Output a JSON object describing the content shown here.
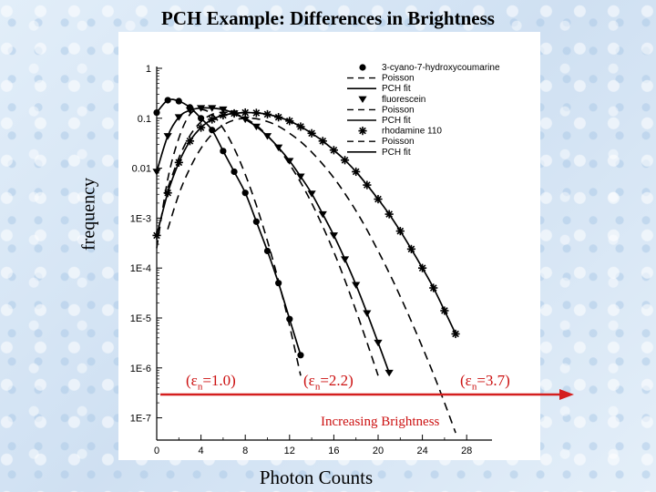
{
  "slide": {
    "title": "PCH Example: Differences in Brightness",
    "ylabel": "frequency",
    "xlabel": "Photon Counts",
    "brightness_label": "Increasing  Brightness",
    "arrow_color": "#d41e1e",
    "epsilon_prefix": "(ε",
    "epsilon_sub": "n",
    "epsilon_labels": [
      "=1.0)",
      "=2.2)",
      "=3.7)"
    ]
  },
  "chart_data": {
    "type": "scatter",
    "title": "PCH Example: Differences in Brightness",
    "xlabel": "Photon Counts",
    "ylabel": "frequency",
    "x_ticks": [
      0,
      4,
      8,
      12,
      16,
      20,
      24,
      28
    ],
    "y_ticks": [
      1,
      0.1,
      0.01,
      0.001,
      0.0001,
      1e-05,
      1e-06,
      1e-07
    ],
    "y_tick_labels": [
      "1",
      "0.1",
      "0.01",
      "1E-3",
      "1E-4",
      "1E-5",
      "1E-6",
      "1E-7"
    ],
    "xlim": [
      0,
      30
    ],
    "ylim": [
      6e-08,
      2
    ],
    "yscale": "log",
    "legend": [
      "3-cyano-7-hydroxycoumarine",
      "Poisson",
      "PCH fit",
      "fluorescein",
      "Poisson",
      "PCH fit",
      "rhodamine 110",
      "Poisson",
      "PCH fit"
    ],
    "series": [
      {
        "name": "3-cyano-7-hydroxycoumarine",
        "marker": "circle",
        "x": [
          0,
          1,
          2,
          3,
          4,
          5,
          6,
          7,
          8,
          9,
          10,
          11,
          12,
          13
        ],
        "y": [
          0.13,
          0.23,
          0.22,
          0.165,
          0.1,
          0.058,
          0.022,
          0.0085,
          0.0032,
          0.00085,
          0.00022,
          5e-05,
          9.5e-06,
          1.8e-06
        ]
      },
      {
        "name": "Poisson (3-cyano-7-hydroxycoumarine)",
        "line": "dashed",
        "x": [
          0,
          1,
          2,
          3,
          4,
          5,
          6,
          7,
          8,
          9,
          10,
          11,
          12,
          13
        ],
        "y": [
          0.00025,
          0.006,
          0.04,
          0.12,
          0.15,
          0.12,
          0.063,
          0.025,
          0.0075,
          0.0018,
          0.00035,
          5.5e-05,
          7e-06,
          7e-07
        ]
      },
      {
        "name": "fluorescein",
        "marker": "triangle-down",
        "x": [
          0,
          1,
          2,
          3,
          4,
          5,
          6,
          7,
          8,
          9,
          10,
          11,
          12,
          13,
          14,
          15,
          16,
          17,
          18,
          19,
          20,
          21
        ],
        "y": [
          0.0085,
          0.044,
          0.105,
          0.145,
          0.16,
          0.16,
          0.15,
          0.125,
          0.095,
          0.068,
          0.044,
          0.026,
          0.014,
          0.0068,
          0.0031,
          0.0012,
          0.00045,
          0.00015,
          4.6e-05,
          1.25e-05,
          3.2e-06,
          8e-07
        ]
      },
      {
        "name": "Poisson (fluorescein)",
        "line": "dashed",
        "x": [
          1,
          2,
          3,
          4,
          5,
          6,
          7,
          8,
          9,
          10,
          11,
          12,
          13,
          14,
          15,
          16,
          17,
          18,
          19,
          20
        ],
        "y": [
          0.004,
          0.016,
          0.045,
          0.085,
          0.12,
          0.132,
          0.125,
          0.1,
          0.072,
          0.045,
          0.025,
          0.012,
          0.0052,
          0.002,
          0.00068,
          0.00021,
          5.7e-05,
          1.4e-05,
          3.2e-06,
          7e-07
        ]
      },
      {
        "name": "rhodamine 110",
        "marker": "asterisk",
        "x": [
          0,
          1,
          2,
          3,
          4,
          5,
          6,
          7,
          8,
          9,
          10,
          11,
          12,
          13,
          14,
          15,
          16,
          17,
          18,
          19,
          20,
          21,
          22,
          23,
          24,
          25,
          26,
          27
        ],
        "y": [
          0.00045,
          0.0032,
          0.013,
          0.035,
          0.065,
          0.095,
          0.115,
          0.125,
          0.13,
          0.128,
          0.12,
          0.105,
          0.088,
          0.068,
          0.05,
          0.035,
          0.023,
          0.0145,
          0.0085,
          0.0046,
          0.0024,
          0.0012,
          0.00055,
          0.00024,
          0.0001,
          4e-05,
          1.4e-05,
          4.8e-06
        ]
      },
      {
        "name": "Poisson (rhodamine 110)",
        "line": "dashed",
        "x": [
          1,
          2,
          3,
          4,
          5,
          6,
          7,
          8,
          9,
          10,
          11,
          12,
          13,
          14,
          15,
          16,
          17,
          18,
          19,
          20,
          21,
          22,
          23,
          24,
          25,
          26,
          27
        ],
        "y": [
          0.0006,
          0.003,
          0.01,
          0.025,
          0.048,
          0.073,
          0.092,
          0.1,
          0.098,
          0.086,
          0.069,
          0.05,
          0.034,
          0.021,
          0.012,
          0.0064,
          0.0031,
          0.0014,
          0.00058,
          0.00022,
          8e-05,
          2.7e-05,
          8.6e-06,
          2.6e-06,
          7.5e-07,
          2e-07,
          5e-08
        ]
      }
    ]
  }
}
